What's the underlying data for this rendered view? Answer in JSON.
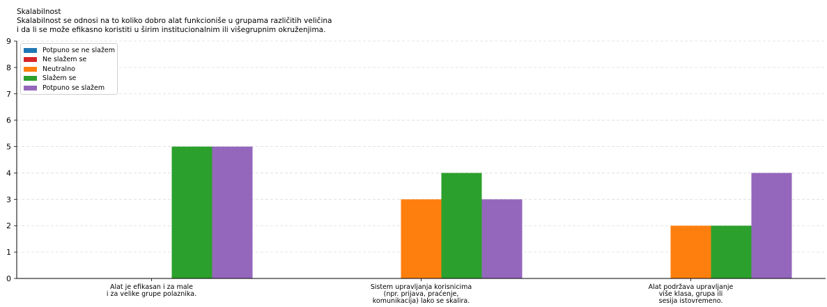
{
  "chart_data": {
    "type": "bar",
    "title": "Skalabilnost",
    "subtitle_lines": [
      "Skalabilnost se odnosi na to koliko dobro alat funkcioniše u grupama različitih veličina",
      "i da li se može efikasno koristiti u širim institucionalnim ili višegrupnim okruženjima."
    ],
    "categories": [
      [
        "Alat je efikasan i za male",
        "i za velike grupe polaznika."
      ],
      [
        "Sistem upravljanja korisnicima",
        "(npr. prijava, praćenje,",
        "komunikacija) lako se skalira."
      ],
      [
        "Alat podržava upravljanje",
        "više klasa, grupa ili",
        "sesija istovremeno."
      ]
    ],
    "series": [
      {
        "name": "Potpuno se ne slažem",
        "color": "#1f77b4",
        "values": [
          0,
          0,
          0
        ]
      },
      {
        "name": "Ne slažem se",
        "color": "#d62728",
        "values": [
          0,
          0,
          0
        ]
      },
      {
        "name": "Neutralno",
        "color": "#ff7f0e",
        "values": [
          0,
          3,
          2
        ]
      },
      {
        "name": "Slažem se",
        "color": "#2ca02c",
        "values": [
          5,
          4,
          2
        ]
      },
      {
        "name": "Potpuno se slažem",
        "color": "#9467bd",
        "values": [
          5,
          3,
          4
        ]
      }
    ],
    "yticks": [
      "0",
      "1",
      "2",
      "3",
      "4",
      "5",
      "6",
      "7",
      "8",
      "9"
    ],
    "ylim": [
      0,
      9
    ],
    "grid": "horizontal-dashed",
    "legend_position": "top-left"
  }
}
